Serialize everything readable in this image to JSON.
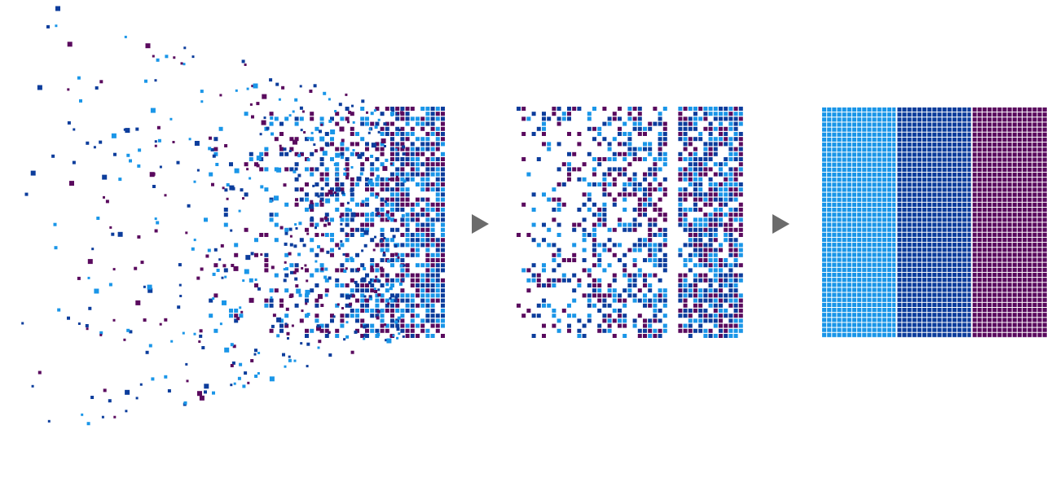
{
  "diagram": {
    "colors": {
      "light_blue": "#1a96e8",
      "dark_blue": "#0c3d9c",
      "purple": "#5a0a5e",
      "arrow": "#6b6b6b",
      "grid_line": "#ffffff"
    },
    "stages": [
      {
        "id": "scattered",
        "description_icon": "scattered-squares"
      },
      {
        "id": "partially-organized",
        "description_icon": "partial-grid"
      },
      {
        "id": "organized",
        "description_icon": "sorted-grid"
      }
    ],
    "arrows": [
      {
        "icon": "play-arrow-icon"
      },
      {
        "icon": "play-arrow-icon"
      }
    ],
    "sorted_groups": [
      "light_blue",
      "dark_blue",
      "purple"
    ]
  }
}
